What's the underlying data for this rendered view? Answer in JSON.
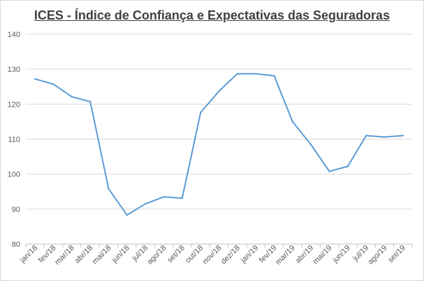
{
  "chart_data": {
    "type": "line",
    "title": "ICES - Índice de Confiança e Expectativas das Seguradoras",
    "xlabel": "",
    "ylabel": "",
    "categories": [
      "jan/18",
      "fev/18",
      "mar/18",
      "abr/18",
      "mai/18",
      "jun/18",
      "jul/18",
      "ago/18",
      "set/18",
      "out/18",
      "nov/18",
      "dez/18",
      "jan/19",
      "fev/19",
      "mar/19",
      "abr/19",
      "mai/19",
      "jun/19",
      "jul/19",
      "ago/19",
      "set/19"
    ],
    "series": [
      {
        "values": [
          127.2,
          125.7,
          122.1,
          120.7,
          95.8,
          88.3,
          91.5,
          93.5,
          93.1,
          117.6,
          123.7,
          128.7,
          128.7,
          128.1,
          115.0,
          108.4,
          100.8,
          102.2,
          111.0,
          110.6,
          111.0
        ],
        "color": "#5b9bd5"
      }
    ],
    "ylim": [
      80,
      140
    ],
    "yticks": [
      80,
      90,
      100,
      110,
      120,
      130,
      140
    ],
    "grid": true,
    "legend": "none"
  }
}
